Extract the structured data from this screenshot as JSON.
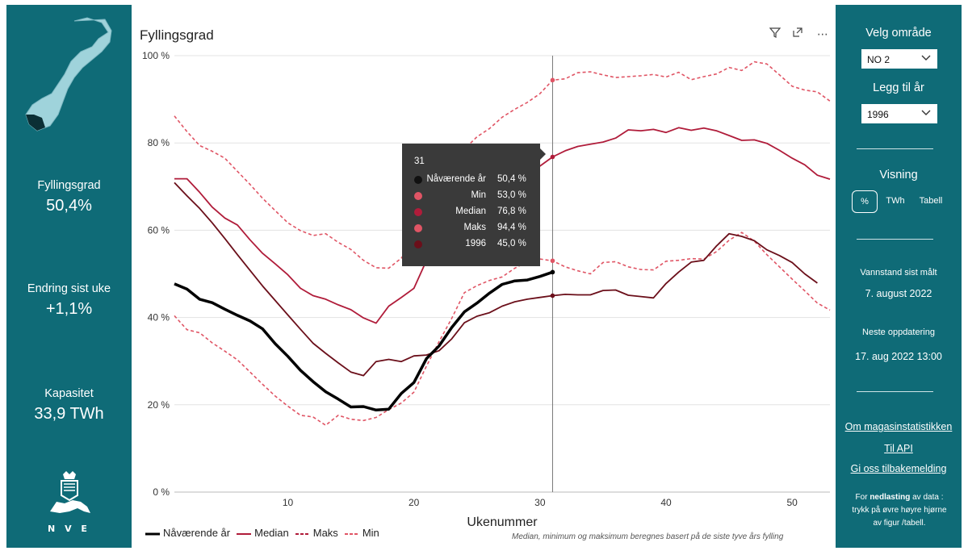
{
  "left_panel": {
    "kpis": [
      {
        "label": "Fyllingsgrad",
        "value": "50,4%"
      },
      {
        "label": "Endring sist uke",
        "value": "+1,1%"
      },
      {
        "label": "Kapasitet",
        "value": "33,9 TWh"
      }
    ],
    "logo_text": "N V E"
  },
  "header": {
    "title": "Fyllingsgrad",
    "icons": [
      "filter-icon",
      "expand-icon",
      "more-options-icon"
    ]
  },
  "right_panel": {
    "area_label": "Velg område",
    "area_value": "NO 2",
    "year_label": "Legg til år",
    "year_value": "1996",
    "view_label": "Visning",
    "view_options": [
      "%",
      "TWh",
      "Tabell"
    ],
    "measured_label": "Vannstand sist målt",
    "measured_value": "7. august 2022",
    "next_update_label": "Neste oppdatering",
    "next_update_value": "17. aug 2022 13:00",
    "links": [
      "Om magasinstatistikken",
      "Til API",
      "Gi oss tilbakemelding"
    ],
    "download_note_1": "For ",
    "download_note_bold": "nedlasting",
    "download_note_2": " av data : trykk på øvre høyre hjørne av figur /tabell."
  },
  "tooltip": {
    "week": "31",
    "rows": [
      {
        "name": "Nåværende år",
        "value": "50,4 %",
        "color": "#111111"
      },
      {
        "name": "Min",
        "value": "53,0 %",
        "color": "#e05565"
      },
      {
        "name": "Median",
        "value": "76,8 %",
        "color": "#b01c3a"
      },
      {
        "name": "Maks",
        "value": "94,4 %",
        "color": "#e05565"
      },
      {
        "name": "1996",
        "value": "45,0 %",
        "color": "#6b0f1a"
      }
    ]
  },
  "legend": [
    {
      "name": "Nåværende år",
      "style": "solid",
      "color": "#000000"
    },
    {
      "name": "Median",
      "style": "solid",
      "color": "#b01c3a"
    },
    {
      "name": "Maks",
      "style": "dashed",
      "color": "#b01c3a"
    },
    {
      "name": "Min",
      "style": "dashed",
      "color": "#e05565"
    }
  ],
  "footnote": "Median, minimum og maksimum beregnes basert på de siste tyve års fylling",
  "chart_data": {
    "type": "line",
    "title": "Fyllingsgrad",
    "xlabel": "Ukenummer",
    "ylabel": "",
    "xlim": [
      1,
      53
    ],
    "ylim": [
      0,
      100
    ],
    "x_ticks": [
      10,
      20,
      30,
      40,
      50
    ],
    "y_ticks": [
      0,
      20,
      40,
      60,
      80,
      100
    ],
    "y_tick_labels": [
      "0 %",
      "20 %",
      "40 %",
      "60 %",
      "80 %",
      "100 %"
    ],
    "hover_week": 31,
    "series": [
      {
        "name": "Maks",
        "style": "dashed",
        "color": "#e05565",
        "x": [
          1,
          2,
          3,
          4,
          5,
          6,
          7,
          8,
          9,
          10,
          11,
          12,
          13,
          14,
          15,
          16,
          17,
          18,
          19,
          20,
          21,
          22,
          23,
          24,
          25,
          26,
          27,
          28,
          29,
          30,
          31,
          32,
          33,
          34,
          35,
          36,
          37,
          38,
          39,
          40,
          41,
          42,
          43,
          44,
          45,
          46,
          47,
          48,
          49,
          50,
          51,
          52,
          53
        ],
        "values": [
          86.2,
          82.6,
          79.4,
          78.1,
          76.5,
          73.5,
          70.5,
          67.3,
          64.5,
          61.7,
          59.9,
          58.8,
          59.2,
          57.2,
          55.6,
          53.1,
          51.4,
          51.3,
          53.6,
          57.6,
          61.8,
          68.8,
          75.0,
          78.6,
          81.4,
          83.3,
          85.9,
          87.7,
          89.3,
          91.3,
          94.4,
          94.7,
          96.1,
          96.3,
          95.6,
          95.0,
          95.2,
          95.4,
          95.7,
          95.1,
          96.2,
          94.5,
          95.2,
          95.8,
          97.3,
          96.6,
          98.6,
          98.1,
          95.6,
          93.0,
          92.1,
          91.7,
          89.6
        ]
      },
      {
        "name": "Median",
        "style": "solid",
        "color": "#b01c3a",
        "x": [
          1,
          2,
          3,
          4,
          5,
          6,
          7,
          8,
          9,
          10,
          11,
          12,
          13,
          14,
          15,
          16,
          17,
          18,
          19,
          20,
          21,
          22,
          23,
          24,
          25,
          26,
          27,
          28,
          29,
          30,
          31,
          32,
          33,
          34,
          35,
          36,
          37,
          38,
          39,
          40,
          41,
          42,
          43,
          44,
          45,
          46,
          47,
          48,
          49,
          50,
          51,
          52,
          53
        ],
        "values": [
          71.8,
          71.8,
          68.7,
          65.3,
          62.8,
          61.2,
          57.8,
          54.7,
          52.3,
          49.8,
          46.7,
          45.0,
          44.2,
          42.9,
          41.8,
          39.9,
          38.7,
          42.6,
          44.6,
          46.7,
          53.1,
          57.4,
          61.1,
          64.3,
          66.4,
          68.2,
          70.0,
          71.8,
          73.0,
          74.7,
          76.8,
          78.2,
          79.2,
          79.7,
          80.2,
          81.1,
          83.0,
          82.8,
          83.1,
          82.4,
          83.5,
          82.9,
          83.4,
          82.8,
          81.7,
          80.6,
          80.7,
          79.9,
          78.3,
          76.5,
          75.0,
          72.6,
          71.7
        ]
      },
      {
        "name": "Min",
        "style": "dashed",
        "color": "#e05565",
        "x": [
          1,
          2,
          3,
          4,
          5,
          6,
          7,
          8,
          9,
          10,
          11,
          12,
          13,
          14,
          15,
          16,
          17,
          18,
          19,
          20,
          21,
          22,
          23,
          24,
          25,
          26,
          27,
          28,
          29,
          30,
          31,
          32,
          33,
          34,
          35,
          36,
          37,
          38,
          39,
          40,
          41,
          42,
          43,
          44,
          45,
          46,
          47,
          48,
          49,
          50,
          51,
          52,
          53
        ],
        "values": [
          40.4,
          37.2,
          36.5,
          34.2,
          32.3,
          30.3,
          27.5,
          24.7,
          22.0,
          19.7,
          17.6,
          17.2,
          15.3,
          17.6,
          16.7,
          16.4,
          17.1,
          18.9,
          20.4,
          22.9,
          28.9,
          34.5,
          39.8,
          45.7,
          47.3,
          48.5,
          49.3,
          51.3,
          52.8,
          53.4,
          53.0,
          51.6,
          50.7,
          50.0,
          52.6,
          52.8,
          51.6,
          51.0,
          50.9,
          52.9,
          53.1,
          53.5,
          53.4,
          55.1,
          57.7,
          59.5,
          57.5,
          54.4,
          51.6,
          48.8,
          46.1,
          43.3,
          41.7
        ]
      },
      {
        "name": "1996",
        "style": "solid",
        "color": "#6b0f1a",
        "x": [
          1,
          2,
          3,
          4,
          5,
          6,
          7,
          8,
          9,
          10,
          11,
          12,
          13,
          14,
          15,
          16,
          17,
          18,
          19,
          20,
          21,
          22,
          23,
          24,
          25,
          26,
          27,
          28,
          29,
          30,
          31,
          32,
          33,
          34,
          35,
          36,
          37,
          38,
          39,
          40,
          41,
          42,
          43,
          44,
          45,
          46,
          47,
          48,
          49,
          50,
          51,
          52
        ],
        "values": [
          70.9,
          67.9,
          65.0,
          61.7,
          58.1,
          54.4,
          50.8,
          47.2,
          43.9,
          40.6,
          37.3,
          34.1,
          31.8,
          29.6,
          27.5,
          26.7,
          29.9,
          30.4,
          29.9,
          31.2,
          31.4,
          32.4,
          35.1,
          38.8,
          40.3,
          41.1,
          42.6,
          43.6,
          44.2,
          44.6,
          45.0,
          45.3,
          45.2,
          45.2,
          46.2,
          46.3,
          45.1,
          44.8,
          44.5,
          47.8,
          50.4,
          52.7,
          53.1,
          56.4,
          59.2,
          58.6,
          57.6,
          55.5,
          54.2,
          52.6,
          50.0,
          47.9
        ]
      },
      {
        "name": "Nåværende år",
        "style": "solid-thick",
        "color": "#000000",
        "x": [
          1,
          2,
          3,
          4,
          5,
          6,
          7,
          8,
          9,
          10,
          11,
          12,
          13,
          14,
          15,
          16,
          17,
          18,
          19,
          20,
          21,
          22,
          23,
          24,
          25,
          26,
          27,
          28,
          29,
          30,
          31
        ],
        "values": [
          47.7,
          46.5,
          44.2,
          43.4,
          41.9,
          40.5,
          39.2,
          37.4,
          34.0,
          31.1,
          27.9,
          25.3,
          23.0,
          21.3,
          19.5,
          19.6,
          18.8,
          19.0,
          22.6,
          25.1,
          30.6,
          33.5,
          37.7,
          41.3,
          43.3,
          45.6,
          47.6,
          48.4,
          48.6,
          49.4,
          50.4
        ]
      }
    ]
  }
}
